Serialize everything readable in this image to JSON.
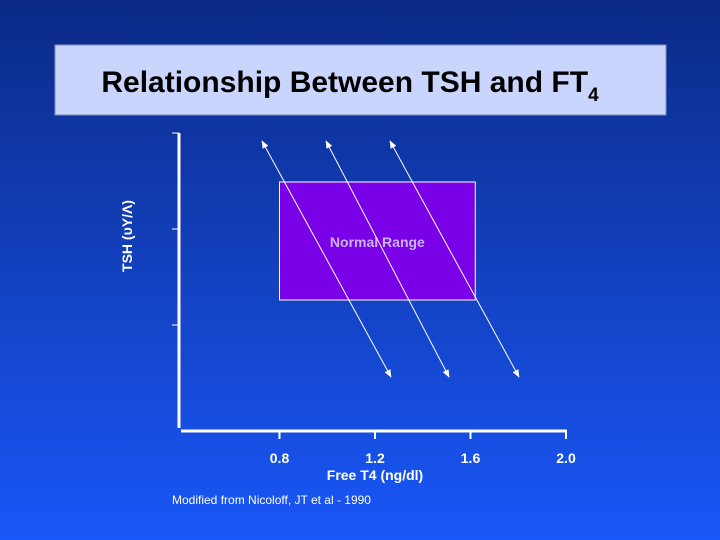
{
  "chart_data": {
    "type": "range-diagram",
    "title": "Relationship Between TSH and FT",
    "title_subscript": "4",
    "y_label": "TSH (υY/Λ)",
    "x_label": "Free T4 (ng/dl)",
    "xlim": [
      0.4,
      2.0
    ],
    "xticks": [
      0.8,
      1.2,
      1.6,
      {
        "value": 2,
        "label": "2.0"
      }
    ],
    "normal_range": {
      "label": "Normal Range",
      "x": [
        0.8,
        1.62
      ],
      "color": "#7a00e8"
    },
    "source": "Modified from Nicoloff, JT et al - 1990"
  }
}
